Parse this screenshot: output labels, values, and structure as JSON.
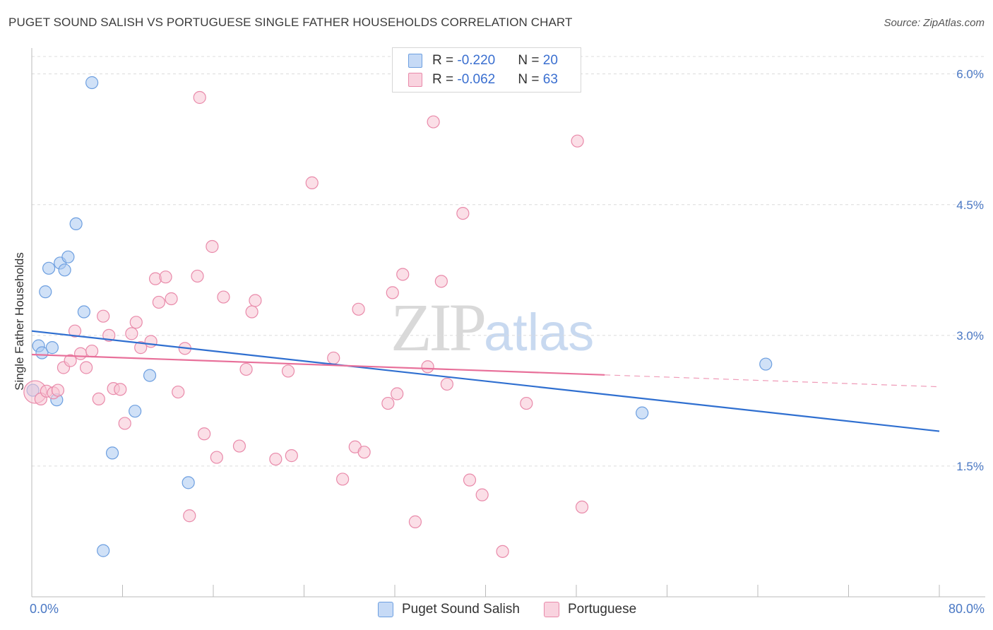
{
  "header": {
    "title": "PUGET SOUND SALISH VS PORTUGUESE SINGLE FATHER HOUSEHOLDS CORRELATION CHART",
    "source": "Source: ZipAtlas.com"
  },
  "watermark": {
    "zip": "ZIP",
    "atlas": "atlas"
  },
  "legend": {
    "rows": [
      {
        "r_label": "R = ",
        "r_value": "-0.220",
        "n_label": "N = ",
        "n_value": "20",
        "color": "#aac8f0",
        "border": "#6d9fe0"
      },
      {
        "r_label": "R = ",
        "r_value": "-0.062",
        "n_label": "N = ",
        "n_value": "63",
        "color": "#f7c4d4",
        "border": "#e98aaa"
      }
    ]
  },
  "bottom_legend": {
    "series1": "Puget Sound Salish",
    "series2": "Portuguese"
  },
  "x_axis_labels": {
    "min": "0.0%",
    "max": "80.0%"
  },
  "chart_data": {
    "type": "scatter",
    "title": "PUGET SOUND SALISH VS PORTUGUESE SINGLE FATHER HOUSEHOLDS CORRELATION CHART",
    "xlabel": "",
    "ylabel": "Single Father Households",
    "xlim": [
      0,
      80
    ],
    "ylim": [
      0,
      6.2
    ],
    "y_ticks": [
      {
        "value": 1.5,
        "label": "1.5%"
      },
      {
        "value": 3.0,
        "label": "3.0%"
      },
      {
        "value": 4.5,
        "label": "4.5%"
      },
      {
        "value": 6.0,
        "label": "6.0%"
      }
    ],
    "x_tick_values": [
      0,
      8,
      16,
      24,
      32,
      40,
      48,
      56,
      64,
      72,
      80
    ],
    "grid": true,
    "series": [
      {
        "name": "Puget Sound Salish",
        "color": "#aac8f0",
        "stroke": "#6d9fe0",
        "trend": {
          "x": [
            0,
            80
          ],
          "y": [
            3.05,
            1.9
          ],
          "color": "#2f6fd0",
          "dashed_from": null
        },
        "points": [
          [
            0.1,
            2.37
          ],
          [
            0.6,
            2.88
          ],
          [
            0.9,
            2.8
          ],
          [
            1.2,
            3.5
          ],
          [
            1.5,
            3.77
          ],
          [
            1.8,
            2.86
          ],
          [
            2.2,
            2.26
          ],
          [
            2.5,
            3.83
          ],
          [
            2.9,
            3.75
          ],
          [
            3.2,
            3.9
          ],
          [
            3.9,
            4.28
          ],
          [
            4.6,
            3.27
          ],
          [
            5.3,
            5.9
          ],
          [
            6.3,
            0.53
          ],
          [
            7.1,
            1.65
          ],
          [
            9.1,
            2.13
          ],
          [
            10.4,
            2.54
          ],
          [
            13.8,
            1.31
          ],
          [
            53.8,
            2.11
          ],
          [
            64.7,
            2.67
          ]
        ]
      },
      {
        "name": "Portuguese",
        "color": "#f7c4d4",
        "stroke": "#e98aaa",
        "trend": {
          "x": [
            0,
            80
          ],
          "y": [
            2.78,
            2.41
          ],
          "color": "#e8709a",
          "dashed_from": 50.5
        },
        "points": [
          [
            0.3,
            2.35
          ],
          [
            0.8,
            2.27
          ],
          [
            1.3,
            2.36
          ],
          [
            1.9,
            2.34
          ],
          [
            2.3,
            2.37
          ],
          [
            2.8,
            2.63
          ],
          [
            3.4,
            2.71
          ],
          [
            3.8,
            3.05
          ],
          [
            4.3,
            2.79
          ],
          [
            4.8,
            2.63
          ],
          [
            5.3,
            2.82
          ],
          [
            5.9,
            2.27
          ],
          [
            6.3,
            3.22
          ],
          [
            6.8,
            3.0
          ],
          [
            7.2,
            2.39
          ],
          [
            7.8,
            2.38
          ],
          [
            8.2,
            1.99
          ],
          [
            8.8,
            3.02
          ],
          [
            9.2,
            3.15
          ],
          [
            9.6,
            2.86
          ],
          [
            10.5,
            2.93
          ],
          [
            10.9,
            3.65
          ],
          [
            11.2,
            3.38
          ],
          [
            11.8,
            3.67
          ],
          [
            12.3,
            3.42
          ],
          [
            12.9,
            2.35
          ],
          [
            13.5,
            2.85
          ],
          [
            13.9,
            0.93
          ],
          [
            14.6,
            3.68
          ],
          [
            14.8,
            5.73
          ],
          [
            15.2,
            1.87
          ],
          [
            15.9,
            4.02
          ],
          [
            16.3,
            1.6
          ],
          [
            16.9,
            3.44
          ],
          [
            18.3,
            1.73
          ],
          [
            18.9,
            2.61
          ],
          [
            19.4,
            3.27
          ],
          [
            19.7,
            3.4
          ],
          [
            21.5,
            1.58
          ],
          [
            22.6,
            2.59
          ],
          [
            22.9,
            1.62
          ],
          [
            24.7,
            4.75
          ],
          [
            26.6,
            2.74
          ],
          [
            27.4,
            1.35
          ],
          [
            28.5,
            1.72
          ],
          [
            28.8,
            3.3
          ],
          [
            29.3,
            1.66
          ],
          [
            31.4,
            2.22
          ],
          [
            31.8,
            3.49
          ],
          [
            32.2,
            2.33
          ],
          [
            32.7,
            3.7
          ],
          [
            33.8,
            0.86
          ],
          [
            34.9,
            2.64
          ],
          [
            35.4,
            5.45
          ],
          [
            36.1,
            3.62
          ],
          [
            36.6,
            2.44
          ],
          [
            38.0,
            4.4
          ],
          [
            38.6,
            1.34
          ],
          [
            39.7,
            1.17
          ],
          [
            41.5,
            0.52
          ],
          [
            43.6,
            2.22
          ],
          [
            48.1,
            5.23
          ],
          [
            48.5,
            1.03
          ]
        ]
      }
    ]
  }
}
